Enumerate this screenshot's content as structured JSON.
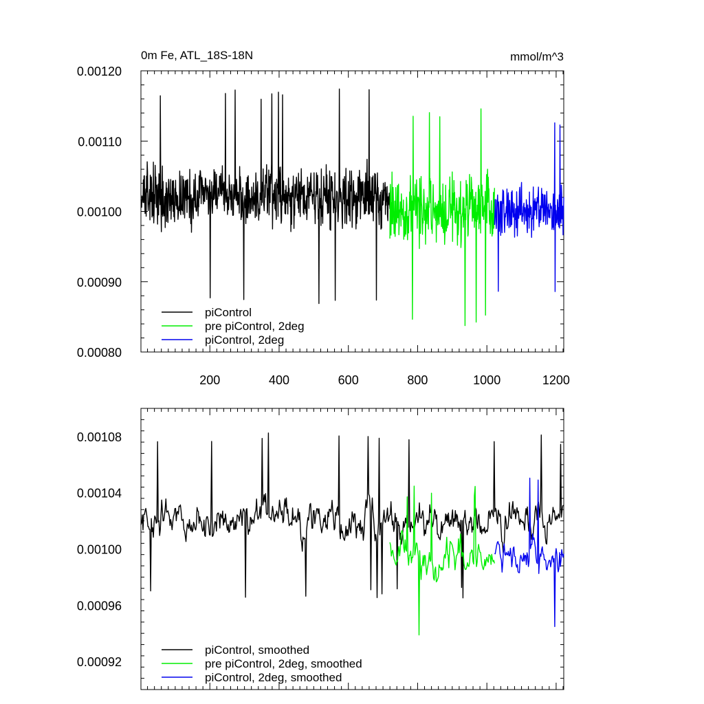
{
  "chart_data": [
    {
      "type": "line",
      "title": "0m Fe, ATL_18S-18N",
      "units_label": "mmol/m^3",
      "xlim": [
        1,
        1222
      ],
      "ylim": [
        0.0008,
        0.0012
      ],
      "xticks": [
        200,
        400,
        600,
        800,
        1000,
        1200
      ],
      "xtick_labels": [
        "200",
        "400",
        "600",
        "800",
        "1000",
        "1200"
      ],
      "yticks": [
        0.0008,
        0.0009,
        0.001,
        0.0011,
        0.0012
      ],
      "ytick_labels": [
        "0.00080",
        "0.00090",
        "0.00100",
        "0.00110",
        "0.00120"
      ],
      "legend_position": "bottom-left",
      "grid": false,
      "series": [
        {
          "name": "piControl",
          "color": "#000000",
          "x_range": [
            1,
            720
          ],
          "mean": 0.00102,
          "amplitude": 6e-05,
          "spike_min": 0.000865,
          "spike_max": 0.001175
        },
        {
          "name": "pre piControl, 2deg",
          "color": "#00ee00",
          "x_range": [
            720,
            1022
          ],
          "mean": 0.001,
          "amplitude": 7e-05,
          "spike_min": 0.000835,
          "spike_max": 0.00115
        },
        {
          "name": "piControl, 2deg",
          "color": "#0000ee",
          "x_range": [
            1022,
            1222
          ],
          "mean": 0.001,
          "amplitude": 5e-05,
          "spike_min": 0.000872,
          "spike_max": 0.00113
        }
      ]
    },
    {
      "type": "line",
      "xlim": [
        1,
        1222
      ],
      "ylim": [
        0.0009,
        0.0011
      ],
      "yticks": [
        0.00092,
        0.00096,
        0.001,
        0.00104,
        0.00108
      ],
      "ytick_labels": [
        "0.00092",
        "0.00096",
        "0.00100",
        "0.00104",
        "0.00108"
      ],
      "legend_position": "bottom-left",
      "grid": false,
      "series": [
        {
          "name": "piControl, smoothed",
          "color": "#000000",
          "x_range": [
            1,
            1222
          ],
          "mean": 0.00102,
          "amplitude": 3e-05,
          "spike_min": 0.000965,
          "spike_max": 0.001083
        },
        {
          "name": "pre piControl, 2deg, smoothed",
          "color": "#00ee00",
          "x_range": [
            720,
            1022
          ],
          "mean": 0.000995,
          "amplitude": 3e-05,
          "spike_min": 0.00093,
          "spike_max": 0.001045
        },
        {
          "name": "piControl, 2deg, smoothed",
          "color": "#0000ee",
          "x_range": [
            1022,
            1222
          ],
          "mean": 0.000995,
          "amplitude": 2.5e-05,
          "spike_min": 0.000943,
          "spike_max": 0.001052
        }
      ]
    }
  ]
}
